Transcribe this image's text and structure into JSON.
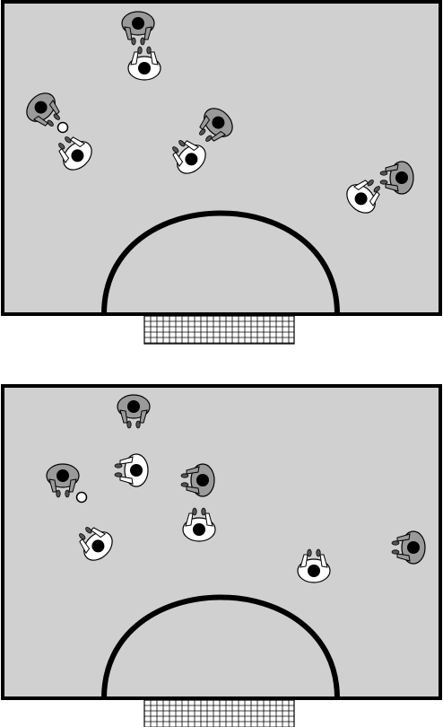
{
  "colors": {
    "court": "#d0d0d0",
    "line": "#000000",
    "team_white": "#ffffff",
    "team_grey": "#9a9a9a",
    "head": "#000000",
    "ball": "#ffffff"
  },
  "diagrams": [
    {
      "players": [
        {
          "team": "grey",
          "facing": "down"
        },
        {
          "team": "white",
          "facing": "up"
        },
        {
          "team": "grey",
          "facing": "down-right"
        },
        {
          "team": "white",
          "facing": "up-left"
        },
        {
          "team": "grey",
          "facing": "down-left"
        },
        {
          "team": "white",
          "facing": "up-left"
        },
        {
          "team": "grey",
          "facing": "left"
        },
        {
          "team": "white",
          "facing": "up-right"
        }
      ],
      "ball": {
        "present": true
      }
    },
    {
      "players": [
        {
          "team": "grey",
          "facing": "down"
        },
        {
          "team": "grey",
          "facing": "down"
        },
        {
          "team": "white",
          "facing": "left"
        },
        {
          "team": "grey",
          "facing": "left"
        },
        {
          "team": "white",
          "facing": "up"
        },
        {
          "team": "white",
          "facing": "up-left"
        },
        {
          "team": "white",
          "facing": "up"
        },
        {
          "team": "grey",
          "facing": "left"
        }
      ],
      "ball": {
        "present": true
      }
    }
  ]
}
